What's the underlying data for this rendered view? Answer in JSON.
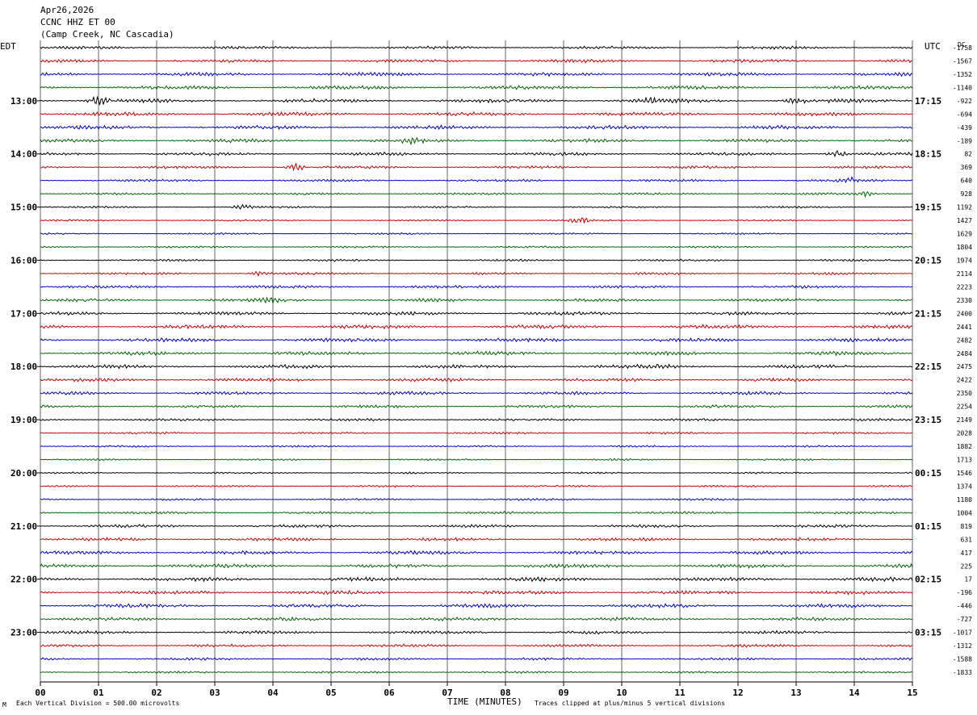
{
  "header": {
    "date": "Apr26,2026",
    "station": "CCNC HHZ ET 00",
    "location": "(Camp Creek, NC Cascadia)"
  },
  "left_timezone": "EDT",
  "right_timezone": "UTC",
  "dc_header": "DC",
  "footer": {
    "scale_note": "Each Vertical Division =  500.00 microvolts",
    "clip_note": "Traces clipped at plus/minus 5 vertical divisions",
    "corner_mark": "M"
  },
  "colors": {
    "trace_cycle": [
      "#000000",
      "#cc0000",
      "#0000cc",
      "#006600"
    ],
    "grid": "#000000",
    "background": "#ffffff"
  },
  "chart_data": {
    "type": "line",
    "subtype": "helicorder",
    "xlabel": "TIME (MINUTES)",
    "x_ticks": [
      "00",
      "01",
      "02",
      "03",
      "04",
      "05",
      "06",
      "07",
      "08",
      "09",
      "10",
      "11",
      "12",
      "13",
      "14",
      "15"
    ],
    "xlim": [
      0,
      15
    ],
    "minutes_per_trace": 15,
    "left_hour_labels": [
      "13:00",
      "14:00",
      "15:00",
      "16:00",
      "17:00",
      "18:00",
      "19:00",
      "20:00",
      "21:00",
      "22:00",
      "23:00"
    ],
    "right_hour_labels": [
      "17:15",
      "18:15",
      "19:15",
      "20:15",
      "21:15",
      "22:15",
      "23:15",
      "00:15",
      "01:15",
      "02:15",
      "03:15"
    ],
    "hour_label_first_trace_index": 4,
    "dc_offsets": [
      -1758,
      -1567,
      -1352,
      -1140,
      -922,
      -694,
      -439,
      -189,
      82,
      369,
      640,
      928,
      1192,
      1427,
      1629,
      1804,
      1974,
      2114,
      2223,
      2330,
      2400,
      2441,
      2482,
      2484,
      2475,
      2422,
      2350,
      2254,
      2149,
      2028,
      1882,
      1713,
      1546,
      1374,
      1180,
      1004,
      819,
      631,
      417,
      225,
      17,
      -196,
      -446,
      -727,
      -1017,
      -1312,
      -1588,
      -1833
    ],
    "events": [
      {
        "trace": 4,
        "minute": 1.0,
        "amplitude": 2.0
      },
      {
        "trace": 4,
        "minute": 10.5,
        "amplitude": 1.2
      },
      {
        "trace": 4,
        "minute": 13.0,
        "amplitude": 1.4
      },
      {
        "trace": 7,
        "minute": 6.4,
        "amplitude": 1.3
      },
      {
        "trace": 8,
        "minute": 13.7,
        "amplitude": 1.5
      },
      {
        "trace": 9,
        "minute": 4.4,
        "amplitude": 1.6
      },
      {
        "trace": 10,
        "minute": 13.9,
        "amplitude": 1.3
      },
      {
        "trace": 11,
        "minute": 14.2,
        "amplitude": 1.2
      },
      {
        "trace": 12,
        "minute": 3.5,
        "amplitude": 1.0
      },
      {
        "trace": 13,
        "minute": 9.3,
        "amplitude": 1.3
      },
      {
        "trace": 17,
        "minute": 3.8,
        "amplitude": 1.0
      },
      {
        "trace": 19,
        "minute": 4.0,
        "amplitude": 1.2
      },
      {
        "trace": 24,
        "minute": 10.7,
        "amplitude": 1.0
      }
    ]
  }
}
